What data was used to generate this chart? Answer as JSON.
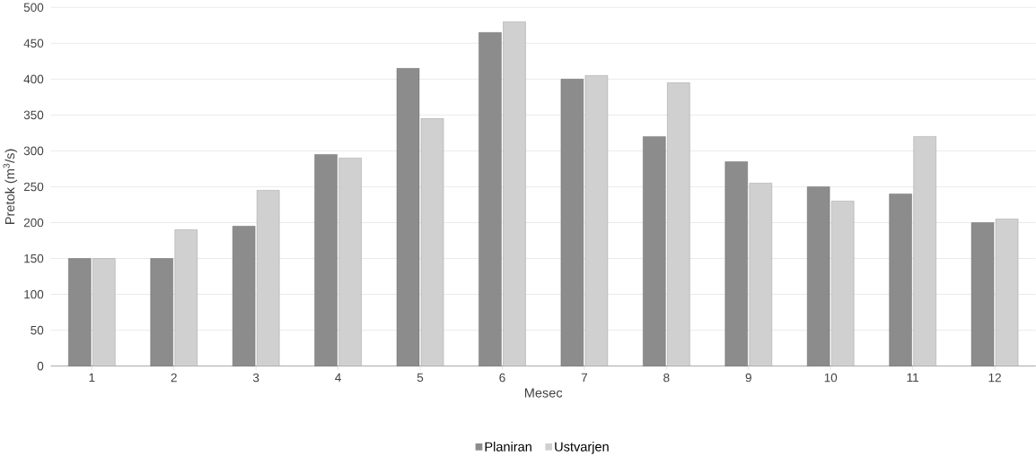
{
  "chart_data": {
    "type": "bar",
    "xlabel": "Mesec",
    "ylabel": "Pretok (m$^{3}$/s)",
    "categories": [
      "1",
      "2",
      "3",
      "4",
      "5",
      "6",
      "7",
      "8",
      "9",
      "10",
      "11",
      "12"
    ],
    "series": [
      {
        "name": "Planiran",
        "color": "#8c8c8c",
        "values": [
          150,
          150,
          195,
          295,
          415,
          465,
          400,
          320,
          285,
          250,
          240,
          200
        ]
      },
      {
        "name": "Ustvarjen",
        "color": "#d0d0d0",
        "values": [
          150,
          190,
          245,
          290,
          345,
          480,
          405,
          395,
          255,
          230,
          320,
          205
        ]
      }
    ],
    "ylim": [
      0,
      500
    ],
    "yticks": [
      0,
      50,
      100,
      150,
      200,
      250,
      300,
      350,
      400,
      450,
      500
    ],
    "grid": "y",
    "legend": "bottom"
  }
}
